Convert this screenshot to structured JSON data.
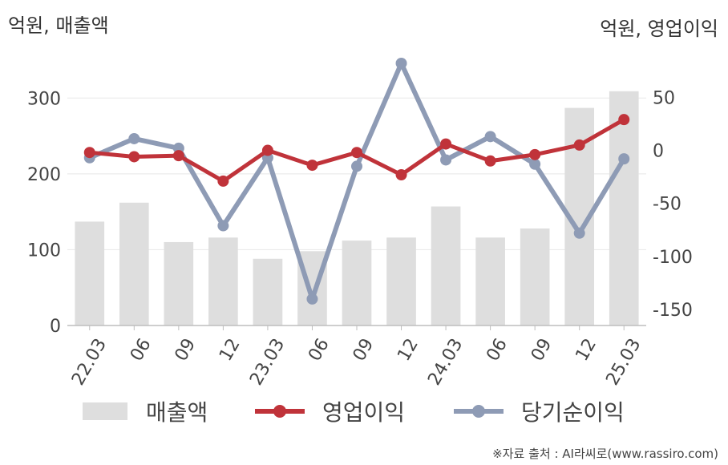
{
  "unit_left": "억원, 매출액",
  "unit_right": "억원, 영업이익",
  "source": "※자료 출처 : AI라씨로(www.rassiro.com)",
  "colors": {
    "bar": "#dedede",
    "op_income": "#c0333a",
    "net_income": "#8e9bb5",
    "grid": "#e8e8e8",
    "axis": "#bdbdbd"
  },
  "chart_data": {
    "type": "bar",
    "categories": [
      "22.03",
      "06",
      "09",
      "12",
      "23.03",
      "06",
      "09",
      "12",
      "24.03",
      "06",
      "09",
      "12",
      "25.03"
    ],
    "left_axis": {
      "ticks": [
        0,
        100,
        200,
        300
      ],
      "range": [
        0,
        350
      ]
    },
    "right_axis": {
      "ticks": [
        50,
        0,
        -50,
        -100,
        -150
      ],
      "range": [
        -165,
        85
      ]
    },
    "series": [
      {
        "name": "매출액",
        "type": "bar",
        "axis": "left",
        "values": [
          137,
          162,
          110,
          116,
          88,
          98,
          112,
          116,
          157,
          116,
          128,
          287,
          309
        ]
      },
      {
        "name": "영업이익",
        "type": "line",
        "axis": "right",
        "values": [
          -2,
          -6,
          -5,
          -29,
          0,
          -14,
          -2,
          -23,
          6,
          -10,
          -4,
          5,
          29
        ]
      },
      {
        "name": "당기순이익",
        "type": "line",
        "axis": "right",
        "values": [
          -7,
          11,
          2,
          -71,
          -7,
          -140,
          -15,
          82,
          -9,
          13,
          -13,
          -78,
          -8
        ]
      }
    ],
    "legend_position": "bottom"
  }
}
